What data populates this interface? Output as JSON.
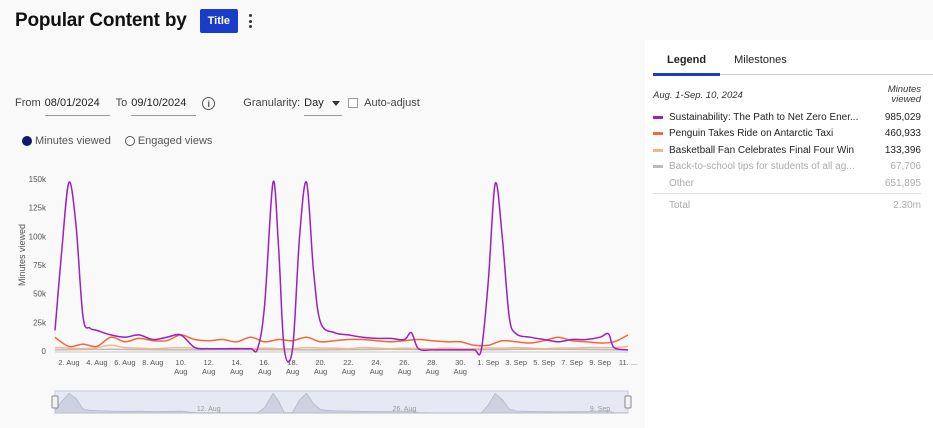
{
  "header": {
    "title": "Popular Content by",
    "group_button": "Title"
  },
  "controls": {
    "from_label": "From",
    "from_value": "08/01/2024",
    "to_label": "To",
    "to_value": "09/10/2024",
    "granularity_label": "Granularity:",
    "granularity_value": "Day",
    "auto_adjust_label": "Auto-adjust",
    "auto_adjust_checked": false
  },
  "metrics": {
    "selected": "Minutes viewed",
    "options": [
      "Minutes viewed",
      "Engaged views"
    ]
  },
  "chart_data": {
    "type": "line",
    "ylabel": "Minutes viewed",
    "ylim": [
      0,
      150000
    ],
    "y_ticks": [
      "0",
      "25k",
      "50k",
      "75k",
      "100k",
      "125k",
      "150k"
    ],
    "x_ticks": [
      {
        "label": "2. Aug",
        "day": 2
      },
      {
        "label": "4. Aug",
        "day": 4
      },
      {
        "label": "6. Aug",
        "day": 6
      },
      {
        "label": "8. Aug",
        "day": 8
      },
      {
        "label": "10. Aug",
        "day": 10
      },
      {
        "label": "12. Aug",
        "day": 12
      },
      {
        "label": "14. Aug",
        "day": 14
      },
      {
        "label": "16. Aug",
        "day": 16
      },
      {
        "label": "18. Aug",
        "day": 18
      },
      {
        "label": "20. Aug",
        "day": 20
      },
      {
        "label": "22. Aug",
        "day": 22
      },
      {
        "label": "24. Aug",
        "day": 24
      },
      {
        "label": "26. Aug",
        "day": 26
      },
      {
        "label": "28. Aug",
        "day": 28
      },
      {
        "label": "30. Aug",
        "day": 30
      },
      {
        "label": "1. Sep",
        "day": 32
      },
      {
        "label": "3. Sep",
        "day": 34
      },
      {
        "label": "5. Sep",
        "day": 36
      },
      {
        "label": "7. Sep",
        "day": 38
      },
      {
        "label": "9. Sep",
        "day": 40
      },
      {
        "label": "11. ...",
        "day": 42
      }
    ],
    "navigator_labels": [
      {
        "label": "12. Aug",
        "day": 12
      },
      {
        "label": "26. Aug",
        "day": 26
      },
      {
        "label": "9. Sep",
        "day": 40
      }
    ],
    "series": [
      {
        "name": "Sustainability: The Path to Net Zero Ener...",
        "color": "#9c1fc0",
        "points": [
          [
            1,
            18000
          ],
          [
            1.5,
            90000
          ],
          [
            2,
            147000
          ],
          [
            2.5,
            110000
          ],
          [
            3,
            30000
          ],
          [
            3.5,
            20000
          ],
          [
            4,
            18000
          ],
          [
            5,
            14000
          ],
          [
            6,
            12000
          ],
          [
            7,
            14000
          ],
          [
            8,
            10000
          ],
          [
            9,
            12000
          ],
          [
            10,
            14000
          ],
          [
            11,
            3000
          ],
          [
            12,
            2000
          ],
          [
            13,
            2000
          ],
          [
            14,
            2000
          ],
          [
            15,
            2000
          ],
          [
            15.5,
            2000
          ],
          [
            16,
            40000
          ],
          [
            16.6,
            147000
          ],
          [
            17,
            90000
          ],
          [
            17.4,
            2000
          ],
          [
            18,
            2000
          ],
          [
            18.5,
            100000
          ],
          [
            19,
            147000
          ],
          [
            19.5,
            70000
          ],
          [
            20,
            25000
          ],
          [
            21,
            16000
          ],
          [
            22,
            14000
          ],
          [
            23,
            12000
          ],
          [
            24,
            11000
          ],
          [
            25,
            11000
          ],
          [
            26,
            10000
          ],
          [
            26.5,
            16000
          ],
          [
            27,
            2000
          ],
          [
            28,
            1000
          ],
          [
            29,
            1000
          ],
          [
            30,
            1000
          ],
          [
            31,
            1000
          ],
          [
            31.5,
            1000
          ],
          [
            32,
            60000
          ],
          [
            32.5,
            146000
          ],
          [
            33,
            100000
          ],
          [
            33.5,
            30000
          ],
          [
            34,
            15000
          ],
          [
            35,
            12000
          ],
          [
            36,
            10000
          ],
          [
            37,
            8000
          ],
          [
            38,
            10000
          ],
          [
            39,
            10000
          ],
          [
            40,
            12000
          ],
          [
            40.6,
            15000
          ],
          [
            41,
            3000
          ],
          [
            42,
            1000
          ]
        ]
      },
      {
        "name": "Penguin Takes Ride on Antarctic Taxi",
        "color": "#f0683a",
        "points": [
          [
            1,
            12000
          ],
          [
            2,
            4000
          ],
          [
            3,
            6000
          ],
          [
            4,
            4000
          ],
          [
            5,
            12000
          ],
          [
            6,
            8000
          ],
          [
            7,
            11000
          ],
          [
            8,
            9000
          ],
          [
            9,
            9000
          ],
          [
            10,
            14000
          ],
          [
            11,
            10000
          ],
          [
            12,
            9000
          ],
          [
            13,
            10000
          ],
          [
            14,
            8000
          ],
          [
            15,
            12000
          ],
          [
            16,
            8000
          ],
          [
            17,
            10000
          ],
          [
            18,
            9000
          ],
          [
            19,
            12000
          ],
          [
            20,
            8000
          ],
          [
            21,
            9000
          ],
          [
            22,
            10000
          ],
          [
            23,
            10000
          ],
          [
            24,
            9000
          ],
          [
            25,
            8000
          ],
          [
            26,
            9000
          ],
          [
            27,
            10000
          ],
          [
            28,
            9000
          ],
          [
            29,
            8000
          ],
          [
            30,
            8000
          ],
          [
            31,
            5000
          ],
          [
            32,
            5000
          ],
          [
            33,
            9000
          ],
          [
            34,
            8000
          ],
          [
            35,
            7000
          ],
          [
            36,
            9000
          ],
          [
            37,
            12000
          ],
          [
            38,
            9000
          ],
          [
            39,
            8000
          ],
          [
            40,
            7000
          ],
          [
            41,
            8000
          ],
          [
            42,
            14000
          ]
        ]
      },
      {
        "name": "Basketball Fan Celebrates Final Four Win",
        "color": "#f5b58a",
        "points": [
          [
            1,
            3000
          ],
          [
            2,
            2500
          ],
          [
            3,
            2000
          ],
          [
            4,
            3000
          ],
          [
            5,
            5000
          ],
          [
            6,
            3000
          ],
          [
            7,
            2500
          ],
          [
            8,
            2000
          ],
          [
            9,
            2500
          ],
          [
            10,
            3000
          ],
          [
            11,
            2500
          ],
          [
            12,
            2000
          ],
          [
            13,
            2000
          ],
          [
            14,
            2500
          ],
          [
            15,
            2000
          ],
          [
            16,
            2500
          ],
          [
            17,
            2000
          ],
          [
            18,
            2000
          ],
          [
            19,
            3000
          ],
          [
            20,
            2500
          ],
          [
            21,
            2500
          ],
          [
            22,
            2000
          ],
          [
            23,
            3000
          ],
          [
            24,
            2500
          ],
          [
            25,
            2000
          ],
          [
            26,
            2500
          ],
          [
            27,
            2000
          ],
          [
            28,
            2000
          ],
          [
            29,
            2500
          ],
          [
            30,
            2000
          ],
          [
            31,
            2000
          ],
          [
            32,
            2500
          ],
          [
            33,
            2500
          ],
          [
            34,
            3000
          ],
          [
            35,
            2500
          ],
          [
            36,
            2000
          ],
          [
            37,
            2500
          ],
          [
            38,
            2500
          ],
          [
            39,
            3000
          ],
          [
            40,
            3000
          ],
          [
            41,
            3000
          ],
          [
            42,
            4000
          ]
        ]
      },
      {
        "name": "Back-to-school tips for students of all ag...",
        "color": "#bbbbbb",
        "points": [
          [
            1,
            1000
          ],
          [
            5,
            1500
          ],
          [
            10,
            1000
          ],
          [
            15,
            1200
          ],
          [
            20,
            1000
          ],
          [
            25,
            1500
          ],
          [
            30,
            1000
          ],
          [
            35,
            1500
          ],
          [
            40,
            1200
          ],
          [
            42,
            1000
          ]
        ]
      }
    ]
  },
  "sidebar": {
    "tabs": [
      "Legend",
      "Milestones"
    ],
    "active_tab": "Legend",
    "date_range": "Aug. 1-Sep. 10, 2024",
    "unit_label": "Minutes viewed",
    "rows": [
      {
        "name": "Sustainability: The Path to Net Zero Ener...",
        "value": "985,029",
        "color": "#9c1fc0",
        "dim": false
      },
      {
        "name": "Penguin Takes Ride on Antarctic Taxi",
        "value": "460,933",
        "color": "#f0683a",
        "dim": false
      },
      {
        "name": "Basketball Fan Celebrates Final Four Win",
        "value": "133,396",
        "color": "#f5b58a",
        "dim": false
      },
      {
        "name": "Back-to-school tips for students of all ag...",
        "value": "67,706",
        "color": "#bbbbbb",
        "dim": true
      },
      {
        "name": "Other",
        "value": "651,895",
        "color": "",
        "dim": true
      }
    ],
    "total_label": "Total",
    "total_value": "2.30m"
  }
}
